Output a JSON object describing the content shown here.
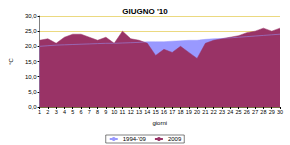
{
  "chart_data": {
    "type": "area",
    "title": "GIUGNO '10",
    "x_label": "giorni",
    "y_label": "°C",
    "categories": [
      "1",
      "2",
      "3",
      "4",
      "5",
      "6",
      "7",
      "8",
      "9",
      "10",
      "11",
      "12",
      "13",
      "14",
      "15",
      "16",
      "17",
      "18",
      "19",
      "20",
      "21",
      "22",
      "23",
      "24",
      "25",
      "26",
      "27",
      "28",
      "29",
      "30"
    ],
    "series": [
      {
        "name": "1994-'09",
        "color": "#9999ff",
        "values": [
          20,
          20.2,
          20.4,
          20.5,
          20.6,
          20.7,
          20.8,
          20.9,
          21,
          21,
          21.1,
          21.2,
          21.3,
          21.5,
          21.5,
          21.5,
          21.7,
          21.8,
          22,
          22,
          22.3,
          22.5,
          22.6,
          22.8,
          23,
          23.2,
          23.4,
          23.6,
          23.8,
          24
        ]
      },
      {
        "name": "2009",
        "color": "#993366",
        "values": [
          22,
          22.5,
          21,
          23,
          24,
          24,
          23,
          22,
          23,
          21,
          25,
          22.5,
          22,
          21,
          17,
          19,
          18,
          20,
          18,
          16,
          21,
          22,
          22.5,
          23,
          23.5,
          24.5,
          25,
          26,
          25,
          26
        ]
      }
    ],
    "ylim": [
      0,
      30
    ],
    "yticks": [
      {
        "value": 0,
        "label": "0,0"
      },
      {
        "value": 5,
        "label": "5,0"
      },
      {
        "value": 10,
        "label": "10,0"
      },
      {
        "value": 15,
        "label": "15,0"
      },
      {
        "value": 20,
        "label": "20,0"
      },
      {
        "value": 25,
        "label": "25,0"
      },
      {
        "value": 30,
        "label": "30,0"
      }
    ],
    "grid": true,
    "legend": "bottom"
  }
}
